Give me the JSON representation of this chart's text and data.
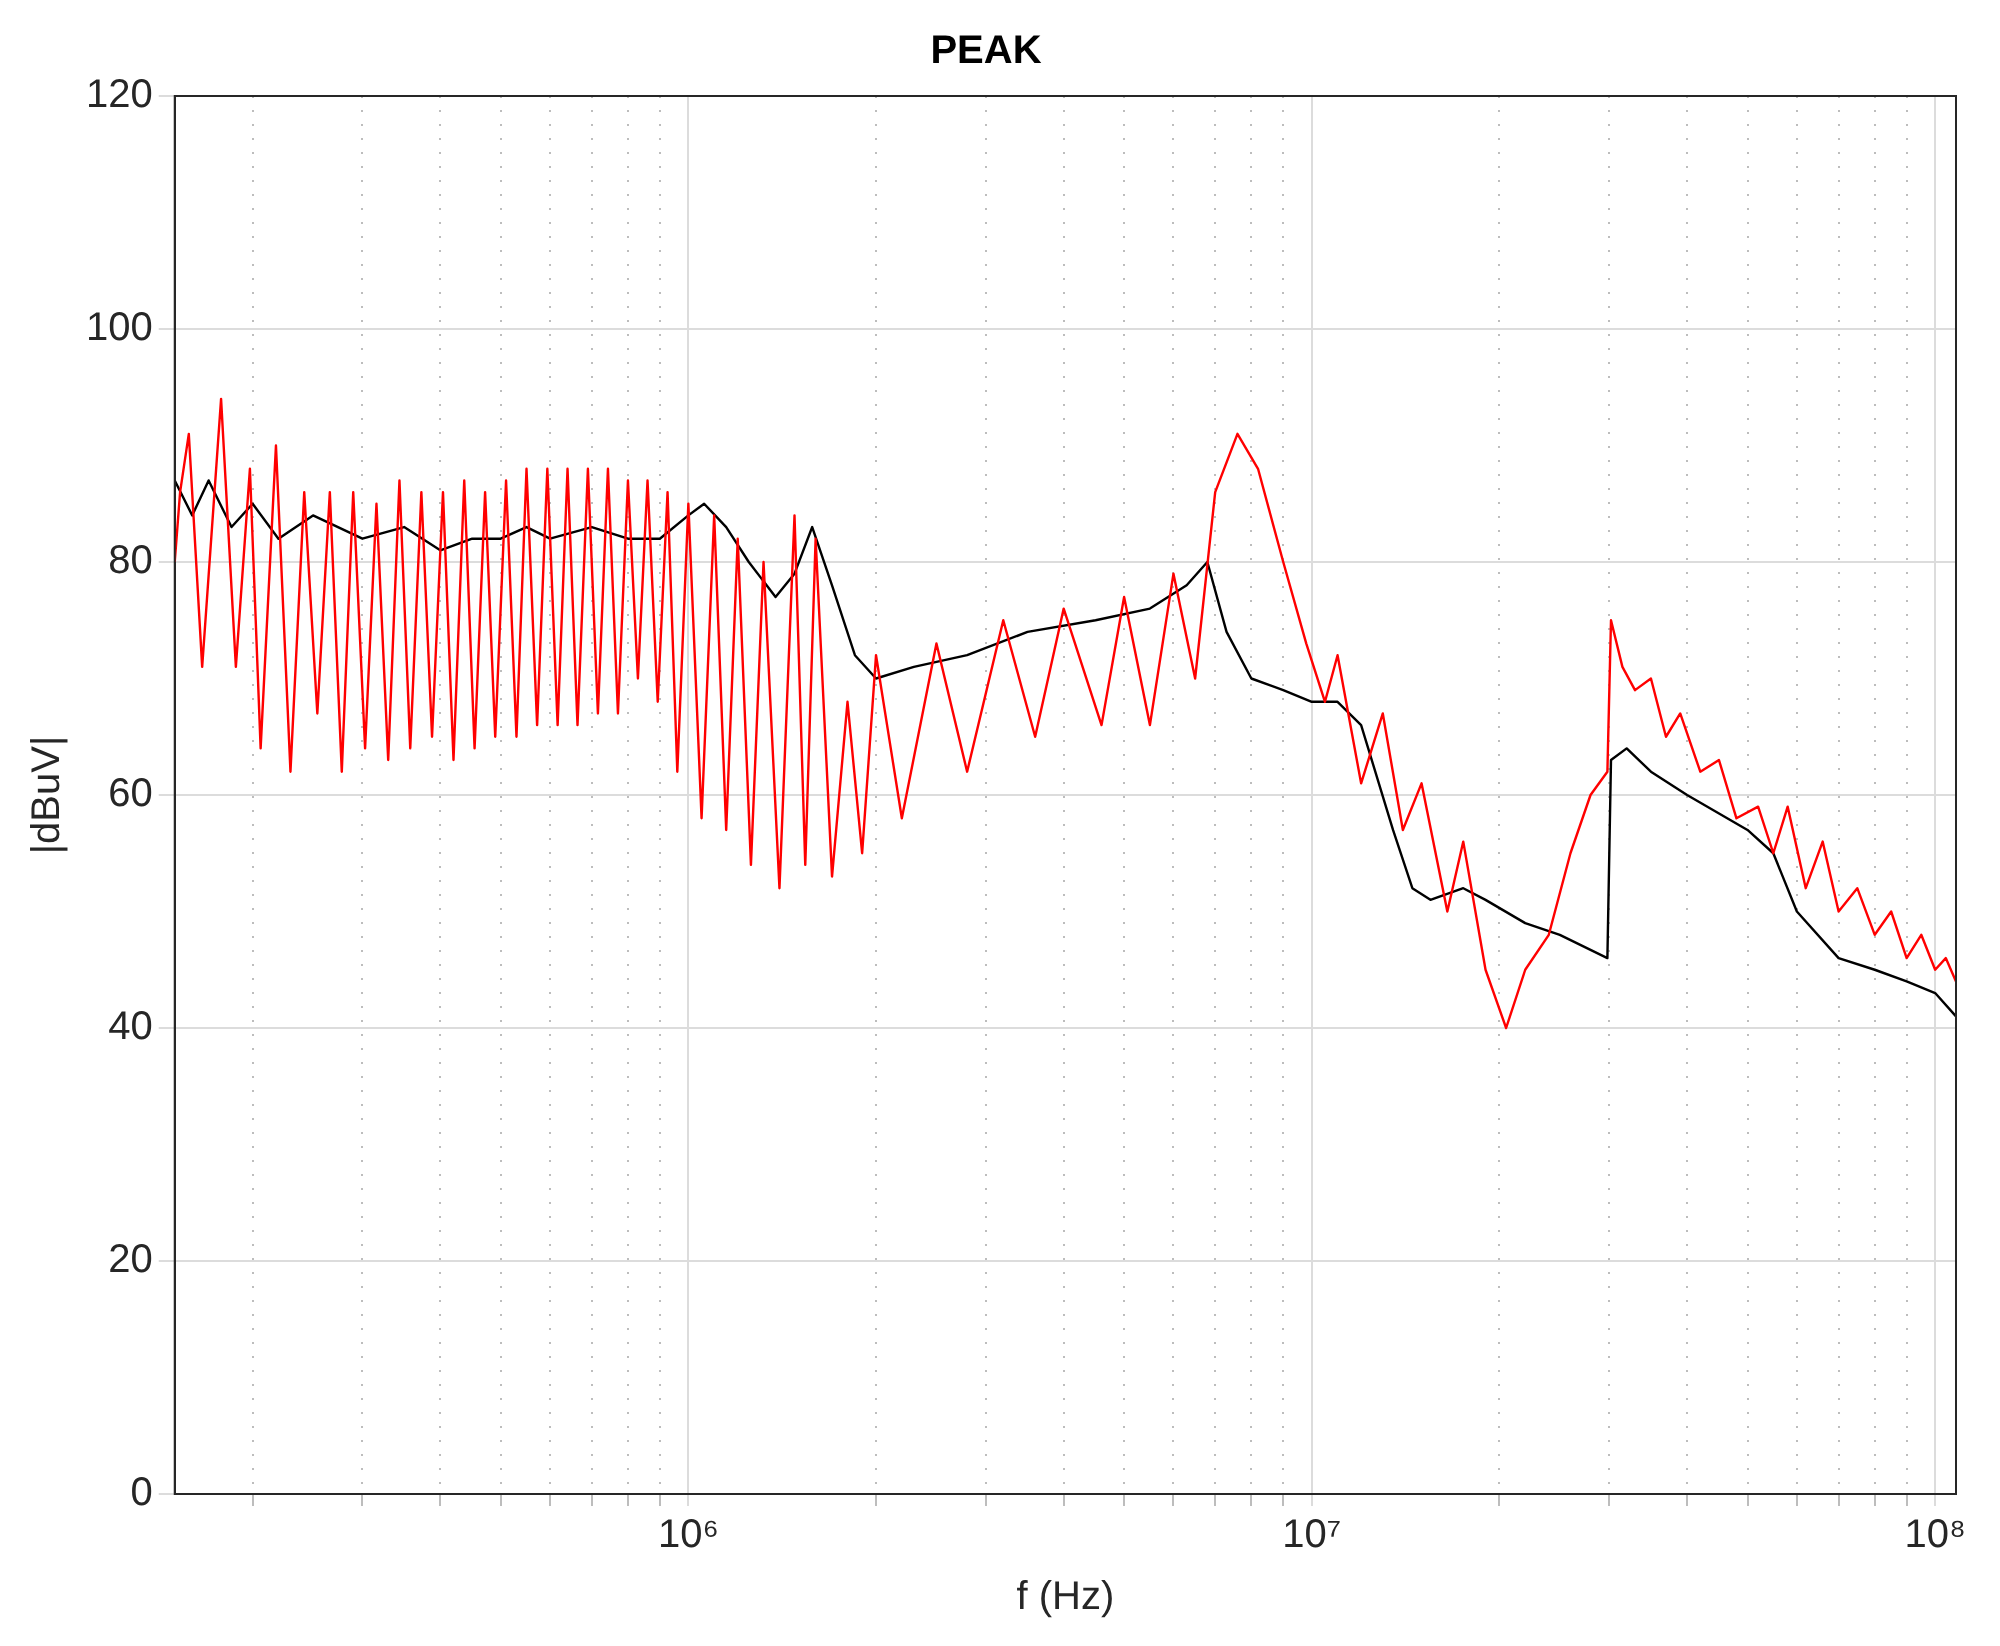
{
  "chart_data": {
    "type": "line",
    "title": "PEAK",
    "xlabel": "f (Hz)",
    "ylabel": "|dBuV|",
    "log": "x",
    "grid": true,
    "legend": false,
    "marker": "none",
    "line_style": "solid",
    "xlim": [
      150000,
      108000000
    ],
    "ylim": [
      0,
      120
    ],
    "xticks": [
      {
        "value": 200000,
        "label": null
      },
      {
        "value": 300000,
        "label": null
      },
      {
        "value": 400000,
        "label": null
      },
      {
        "value": 500000,
        "label": null
      },
      {
        "value": 600000,
        "label": null
      },
      {
        "value": 700000,
        "label": null
      },
      {
        "value": 800000,
        "label": null
      },
      {
        "value": 900000,
        "label": null
      },
      {
        "value": 1000000,
        "label": "10⁶"
      },
      {
        "value": 2000000,
        "label": null
      },
      {
        "value": 3000000,
        "label": null
      },
      {
        "value": 4000000,
        "label": null
      },
      {
        "value": 5000000,
        "label": null
      },
      {
        "value": 6000000,
        "label": null
      },
      {
        "value": 7000000,
        "label": null
      },
      {
        "value": 8000000,
        "label": null
      },
      {
        "value": 9000000,
        "label": null
      },
      {
        "value": 10000000,
        "label": "10⁷"
      },
      {
        "value": 20000000,
        "label": null
      },
      {
        "value": 30000000,
        "label": null
      },
      {
        "value": 40000000,
        "label": null
      },
      {
        "value": 50000000,
        "label": null
      },
      {
        "value": 60000000,
        "label": null
      },
      {
        "value": 70000000,
        "label": null
      },
      {
        "value": 80000000,
        "label": null
      },
      {
        "value": 90000000,
        "label": null
      },
      {
        "value": 100000000,
        "label": "10⁸"
      }
    ],
    "yticks": [
      0,
      20,
      40,
      60,
      80,
      100,
      120
    ],
    "series": [
      {
        "color": "#ff0000",
        "x": [
          150000,
          153000,
          158000,
          166000,
          178000,
          188000,
          198000,
          206000,
          218000,
          230000,
          242000,
          254000,
          266000,
          278000,
          290000,
          303000,
          316000,
          330000,
          344000,
          358000,
          373000,
          388000,
          404000,
          420000,
          437000,
          454000,
          472000,
          490000,
          510000,
          530000,
          550000,
          572000,
          594000,
          617000,
          640000,
          664000,
          690000,
          716000,
          743000,
          771000,
          800000,
          830000,
          860000,
          893000,
          926000,
          960000,
          1000000,
          1050000,
          1100000,
          1150000,
          1200000,
          1260000,
          1320000,
          1400000,
          1480000,
          1540000,
          1600000,
          1700000,
          1800000,
          1900000,
          2000000,
          2200000,
          2500000,
          2800000,
          3200000,
          3600000,
          4000000,
          4600000,
          5000000,
          5500000,
          6000000,
          6500000,
          7000000,
          7600000,
          8200000,
          9000000,
          9800000,
          10500000,
          11000000,
          12000000,
          13000000,
          14000000,
          15000000,
          16500000,
          17500000,
          19000000,
          20500000,
          22000000,
          24000000,
          26000000,
          28000000,
          29800000,
          30200000,
          31500000,
          33000000,
          35000000,
          37000000,
          39000000,
          42000000,
          45000000,
          48000000,
          52000000,
          55000000,
          58000000,
          62000000,
          66000000,
          70000000,
          75000000,
          80000000,
          85000000,
          90000000,
          95000000,
          100000000,
          104000000,
          108000000
        ],
        "values": [
          80,
          86,
          91,
          71,
          94,
          71,
          88,
          64,
          90,
          62,
          86,
          67,
          86,
          62,
          86,
          64,
          85,
          63,
          87,
          64,
          86,
          65,
          86,
          63,
          87,
          64,
          86,
          65,
          87,
          65,
          88,
          66,
          88,
          66,
          88,
          66,
          88,
          67,
          88,
          67,
          87,
          70,
          87,
          68,
          86,
          62,
          85,
          58,
          84,
          57,
          82,
          54,
          80,
          52,
          84,
          54,
          82,
          53,
          68,
          55,
          72,
          58,
          73,
          62,
          75,
          65,
          76,
          66,
          77,
          66,
          79,
          70,
          86,
          91,
          88,
          80,
          73,
          68,
          72,
          61,
          67,
          57,
          61,
          50,
          56,
          45,
          40,
          45,
          48,
          55,
          60,
          62,
          75,
          71,
          69,
          70,
          65,
          67,
          62,
          63,
          58,
          59,
          55,
          59,
          52,
          56,
          50,
          52,
          48,
          50,
          46,
          48,
          45,
          46,
          44
        ]
      },
      {
        "color": "#000000",
        "x": [
          150000,
          160000,
          170000,
          185000,
          200000,
          220000,
          250000,
          300000,
          350000,
          400000,
          450000,
          500000,
          550000,
          600000,
          700000,
          800000,
          900000,
          1000000,
          1060000,
          1150000,
          1250000,
          1380000,
          1480000,
          1580000,
          1700000,
          1850000,
          2000000,
          2300000,
          2800000,
          3500000,
          4500000,
          5500000,
          6300000,
          6800000,
          7300000,
          8000000,
          9000000,
          10000000,
          11000000,
          12000000,
          13500000,
          14500000,
          15500000,
          17500000,
          19000000,
          22000000,
          25000000,
          29800000,
          30200000,
          32000000,
          35000000,
          40000000,
          50000000,
          55000000,
          60000000,
          70000000,
          80000000,
          90000000,
          100000000,
          108000000
        ],
        "values": [
          87,
          84,
          87,
          83,
          85,
          82,
          84,
          82,
          83,
          81,
          82,
          82,
          83,
          82,
          83,
          82,
          82,
          84,
          85,
          83,
          80,
          77,
          79,
          83,
          78,
          72,
          70,
          71,
          72,
          74,
          75,
          76,
          78,
          80,
          74,
          70,
          69,
          68,
          68,
          66,
          57,
          52,
          51,
          52,
          51,
          49,
          48,
          46,
          63,
          64,
          62,
          60,
          57,
          55,
          50,
          46,
          45,
          44,
          43,
          41
        ]
      }
    ]
  }
}
